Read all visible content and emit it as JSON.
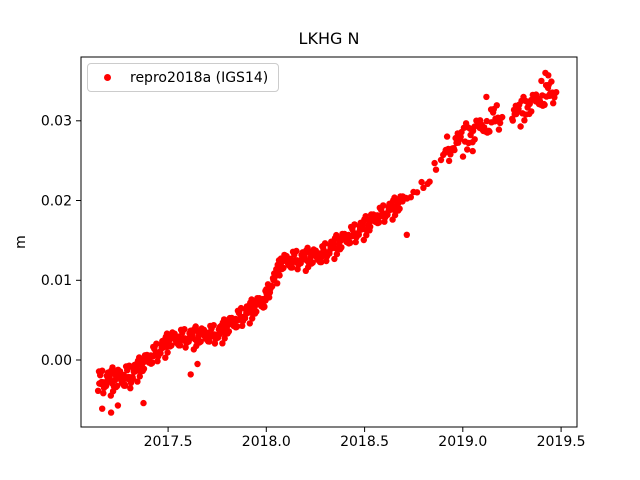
{
  "figure": {
    "background": "#ffffff"
  },
  "chart_data": {
    "type": "scatter",
    "title": "LKHG N",
    "xlabel": "",
    "ylabel": "m",
    "series_name": "repro2018a (IGS14)",
    "marker": "point",
    "marker_color": "#ff0000",
    "marker_diameter_px": 6.4,
    "grid": false,
    "legend_position": "upper left",
    "xlim": [
      2017.057,
      2019.581
    ],
    "ylim": [
      -0.0084,
      0.038
    ],
    "xticks": {
      "values": [
        2017.5,
        2018.0,
        2018.5,
        2019.0,
        2019.5
      ],
      "labels": [
        "2017.5",
        "2018.0",
        "2018.5",
        "2019.0",
        "2019.5"
      ]
    },
    "yticks": {
      "values": [
        0.0,
        0.01,
        0.02,
        0.03
      ],
      "labels": [
        "0.00",
        "0.01",
        "0.02",
        "0.03"
      ]
    },
    "axis_color": "#000000",
    "text_color": "#000000",
    "trend_knots": [
      [
        2017.15,
        -0.0029
      ],
      [
        2017.32,
        -0.0019
      ],
      [
        2017.5,
        0.0022
      ],
      [
        2017.77,
        0.0034
      ],
      [
        2018.0,
        0.0078
      ],
      [
        2018.07,
        0.0119
      ],
      [
        2018.29,
        0.0132
      ],
      [
        2018.53,
        0.0172
      ],
      [
        2018.695,
        0.0198
      ],
      [
        2018.9,
        0.0247
      ],
      [
        2018.91,
        0.0262
      ],
      [
        2019.2,
        0.0307
      ],
      [
        2019.25,
        0.0305
      ],
      [
        2019.475,
        0.0338
      ]
    ],
    "points_spec": {
      "comment": "dense daily band 2017.15-2018.70, sparse 2018.70-2018.90, cluster 2018.91-2019.20, gap, cluster 2019.25-2019.475; v = linear(v0,v1) + spread*noise",
      "segments": [
        {
          "t": [
            2017.145,
            2017.32
          ],
          "n": 62,
          "v": [
            -0.0029,
            -0.0021
          ],
          "spread": 0.0016
        },
        {
          "t": [
            2017.32,
            2017.5
          ],
          "n": 62,
          "v": [
            -0.0017,
            0.0021
          ],
          "spread": 0.0013
        },
        {
          "t": [
            2017.5,
            2017.77
          ],
          "n": 88,
          "v": [
            0.0024,
            0.0033
          ],
          "spread": 0.0013
        },
        {
          "t": [
            2017.77,
            2018.0
          ],
          "n": 80,
          "v": [
            0.0035,
            0.0076
          ],
          "spread": 0.0013
        },
        {
          "t": [
            2018.0,
            2018.07
          ],
          "n": 24,
          "v": [
            0.008,
            0.0117
          ],
          "spread": 0.0011
        },
        {
          "t": [
            2018.07,
            2018.29
          ],
          "n": 72,
          "v": [
            0.0121,
            0.0131
          ],
          "spread": 0.0013
        },
        {
          "t": [
            2018.29,
            2018.53
          ],
          "n": 78,
          "v": [
            0.0133,
            0.0171
          ],
          "spread": 0.0013
        },
        {
          "t": [
            2018.53,
            2018.695
          ],
          "n": 54,
          "v": [
            0.0173,
            0.0198
          ],
          "spread": 0.0012
        },
        {
          "t": [
            2018.705,
            2018.9
          ],
          "n": 13,
          "v": [
            0.02,
            0.0247
          ],
          "spread": 0.0013
        },
        {
          "t": [
            2018.91,
            2019.2
          ],
          "n": 56,
          "v": [
            0.0262,
            0.0307
          ],
          "spread": 0.0018
        },
        {
          "t": [
            2019.25,
            2019.475
          ],
          "n": 48,
          "v": [
            0.0305,
            0.0338
          ],
          "spread": 0.0016
        }
      ],
      "outliers": [
        [
          2017.165,
          -0.0061
        ],
        [
          2017.21,
          -0.0066
        ],
        [
          2017.245,
          -0.0057
        ],
        [
          2017.375,
          -0.0054
        ],
        [
          2017.615,
          -0.0018
        ],
        [
          2017.65,
          -0.0005
        ],
        [
          2018.715,
          0.0157
        ],
        [
          2019.05,
          0.0262
        ],
        [
          2019.12,
          0.033
        ],
        [
          2019.4,
          0.035
        ],
        [
          2019.42,
          0.036
        ],
        [
          2019.435,
          0.0357
        ]
      ],
      "noise_table": [
        0.12,
        -0.76,
        0.54,
        -0.21,
        0.93,
        -0.58,
        0.31,
        -0.97,
        0.68,
        -0.05,
        0.44,
        -0.83,
        0.22,
        0.77,
        -0.36,
        0.59,
        -0.64,
        0.08,
        0.86,
        -0.45,
        0.29,
        -0.12,
        0.71,
        -0.91,
        0.38,
        0.02,
        -0.55,
        0.82,
        -0.27,
        0.49,
        -0.7,
        0.15,
        0.95,
        -0.4,
        0.61,
        -0.88,
        0.26,
        -0.09,
        0.73,
        -0.52,
        0.35,
        0.88,
        -0.18,
        0.42,
        -0.66,
        0.05,
        0.57,
        -0.33
      ],
      "n_points_total": 649
    }
  }
}
